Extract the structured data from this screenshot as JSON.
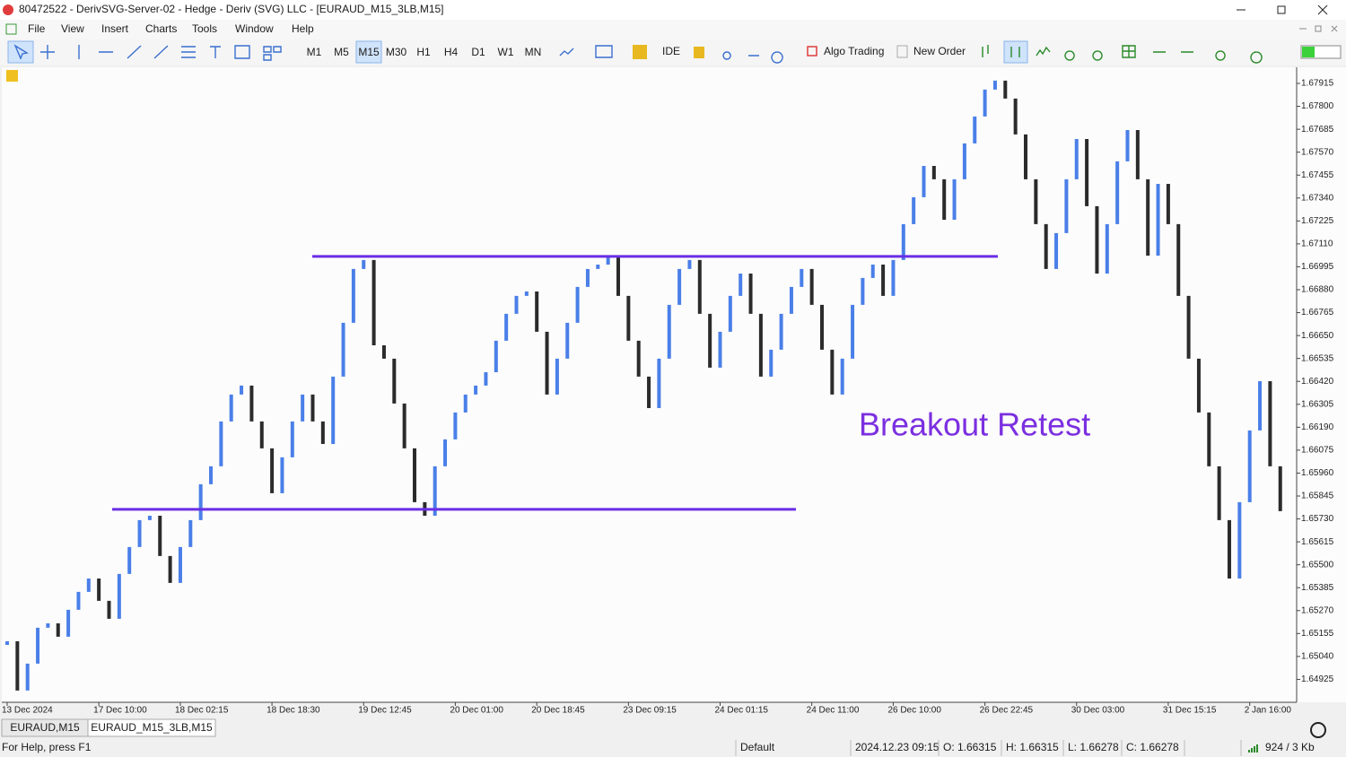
{
  "window": {
    "title": "80472522 - DerivSVG-Server-02 - Hedge - Deriv (SVG) LLC - [EURAUD_M15_3LB,M15]",
    "menu": [
      "File",
      "View",
      "Insert",
      "Charts",
      "Tools",
      "Window",
      "Help"
    ]
  },
  "toolbar": {
    "timeframes": [
      "M1",
      "M5",
      "M15",
      "M30",
      "H1",
      "H4",
      "D1",
      "W1",
      "MN"
    ],
    "active_timeframe": "M15",
    "ide": "IDE",
    "algo_trading": "Algo Trading",
    "new_order": "New Order"
  },
  "chart_data": {
    "type": "line-break",
    "annotation": "Breakout Retest",
    "annotation_color": "#7b2fe0",
    "up_color": "#4a7fe8",
    "down_color": "#2b2b2b",
    "level_color": "#6a2ee6",
    "levels": [
      1.65778,
      1.67047
    ],
    "ylim": [
      1.6481,
      1.67996
    ],
    "yticks": [
      1.67915,
      {
        "value": 1.678,
        "label": "1.67800"
      },
      1.67685,
      {
        "value": 1.6757,
        "label": "1.67570"
      },
      1.67455,
      {
        "value": 1.6734,
        "label": "1.67340"
      },
      1.67225,
      {
        "value": 1.6711,
        "label": "1.67110"
      },
      1.66995,
      {
        "value": 1.6688,
        "label": "1.66880"
      },
      1.66765,
      {
        "value": 1.6665,
        "label": "1.66650"
      },
      1.66535,
      {
        "value": 1.6642,
        "label": "1.66420"
      },
      1.66305,
      {
        "value": 1.6619,
        "label": "1.66190"
      },
      1.66075,
      {
        "value": 1.6596,
        "label": "1.65960"
      },
      1.65845,
      {
        "value": 1.6573,
        "label": "1.65730"
      },
      1.65615,
      {
        "value": 1.655,
        "label": "1.65500"
      },
      1.65385,
      {
        "value": 1.6527,
        "label": "1.65270"
      },
      1.65155,
      {
        "value": 1.6504,
        "label": "1.65040"
      },
      1.64925
    ],
    "categories": [
      "13 Dec 2024",
      null,
      null,
      null,
      null,
      null,
      null,
      null,
      null,
      "17 Dec 10:00",
      null,
      null,
      null,
      null,
      null,
      null,
      null,
      "18 Dec 02:15",
      null,
      null,
      null,
      null,
      null,
      null,
      null,
      null,
      "18 Dec 18:30",
      null,
      null,
      null,
      null,
      null,
      null,
      null,
      null,
      "19 Dec 12:45",
      null,
      null,
      null,
      null,
      null,
      null,
      null,
      null,
      "20 Dec 01:00",
      null,
      null,
      null,
      null,
      null,
      null,
      null,
      "20 Dec 18:45",
      null,
      null,
      null,
      null,
      null,
      null,
      null,
      null,
      "23 Dec 09:15",
      null,
      null,
      null,
      null,
      null,
      null,
      null,
      null,
      "24 Dec 01:15",
      null,
      null,
      null,
      null,
      null,
      null,
      null,
      null,
      "24 Dec 11:00",
      null,
      null,
      null,
      null,
      null,
      null,
      null,
      "26 Dec 10:00",
      null,
      null,
      null,
      null,
      null,
      null,
      null,
      null,
      "26 Dec 22:45",
      null,
      null,
      null,
      null,
      null,
      null,
      null,
      null,
      "30 Dec 03:00",
      null,
      null,
      null,
      null,
      null,
      null,
      null,
      null,
      "31 Dec 15:15",
      null,
      null,
      null,
      null,
      null,
      null,
      null,
      "2 Jan 16:00",
      null,
      null,
      null
    ],
    "values": [
      1.65116,
      1.64869,
      1.65004,
      1.65184,
      1.65206,
      1.65139,
      1.65274,
      1.65364,
      1.65431,
      1.65319,
      1.65229,
      1.65454,
      1.65589,
      1.65724,
      1.65746,
      1.65544,
      1.65409,
      1.65589,
      1.65724,
      1.65904,
      1.65994,
      1.66219,
      1.66354,
      1.66399,
      1.66219,
      1.66084,
      1.65859,
      1.66039,
      1.66219,
      1.66354,
      1.66219,
      1.66106,
      1.66444,
      1.66714,
      1.66984,
      1.67029,
      1.66601,
      1.66534,
      1.66309,
      1.66084,
      1.65814,
      1.65746,
      1.65994,
      1.66129,
      1.66264,
      1.66354,
      1.66399,
      1.66466,
      1.66624,
      1.66759,
      1.66849,
      1.66871,
      1.66669,
      1.66354,
      1.66534,
      1.66714,
      1.66894,
      1.66984,
      1.67006,
      1.67051,
      1.66849,
      1.66624,
      1.66444,
      1.66286,
      1.66534,
      1.66804,
      1.66984,
      1.67029,
      1.66759,
      1.66489,
      1.66669,
      1.66849,
      1.66961,
      1.66759,
      1.66444,
      1.66579,
      1.66759,
      1.66894,
      1.66984,
      1.66804,
      1.66579,
      1.66354,
      1.66534,
      1.66804,
      1.66939,
      1.67006,
      1.66849,
      1.67029,
      1.67209,
      1.67344,
      1.67501,
      1.67434,
      1.67231,
      1.67434,
      1.67614,
      1.67749,
      1.67884,
      1.67929,
      1.67839,
      1.67659,
      1.67434,
      1.67209,
      1.66984,
      1.67164,
      1.67434,
      1.67636,
      1.67299,
      1.66961,
      1.67209,
      1.67524,
      1.67681,
      1.67434,
      1.67051,
      1.67411,
      1.67209,
      1.66849,
      1.66534,
      1.66264,
      1.65994,
      1.65724,
      1.65431,
      1.65814,
      1.66174,
      1.66421,
      1.65994,
      1.65769
    ]
  },
  "tabs": [
    "EURAUD,M15",
    "EURAUD_M15_3LB,M15"
  ],
  "status": {
    "help": "For Help, press F1",
    "profile": "Default",
    "time": "2024.12.23 09:15",
    "open": "O: 1.66315",
    "high": "H: 1.66315",
    "low": "L: 1.66278",
    "close": "C: 1.66278",
    "traffic": "924 / 3 Kb"
  }
}
